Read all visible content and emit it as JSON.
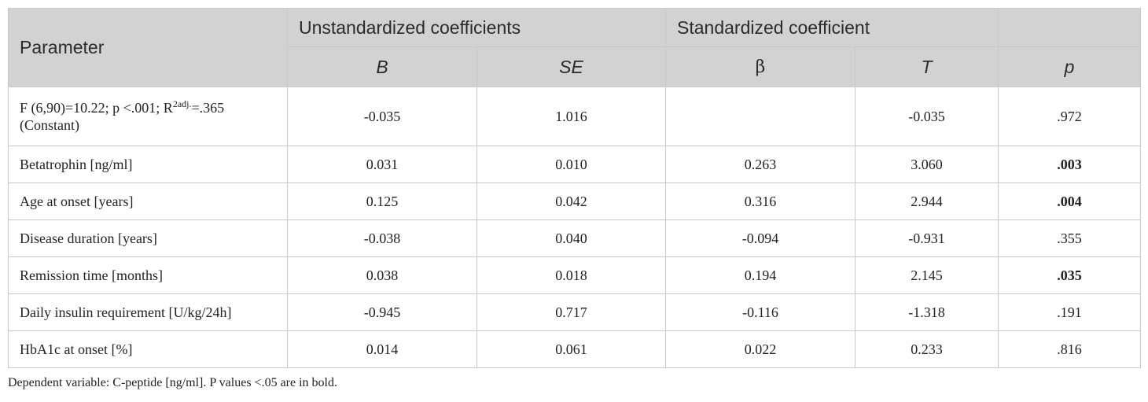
{
  "header": {
    "parameter": "Parameter",
    "group_unstd": "Unstandardized coefficients",
    "group_std": "Standardized coefficient",
    "col_b": "B",
    "col_se": "SE",
    "col_beta": "β",
    "col_t": "T",
    "col_p": "p"
  },
  "model_row": {
    "stat_prefix": "F (6,90)=10.22; p <.001; R",
    "stat_sup": "2adj.",
    "stat_suffix": "=.365",
    "label": "(Constant)",
    "b": "-0.035",
    "se": "1.016",
    "beta": "",
    "t": "-0.035",
    "p": ".972"
  },
  "rows": [
    {
      "label": "Betatrophin [ng/ml]",
      "b": "0.031",
      "se": "0.010",
      "beta": "0.263",
      "t": "3.060",
      "p": ".003",
      "p_bold": true
    },
    {
      "label": "Age at onset [years]",
      "b": "0.125",
      "se": "0.042",
      "beta": "0.316",
      "t": "2.944",
      "p": ".004",
      "p_bold": true
    },
    {
      "label": "Disease duration [years]",
      "b": "-0.038",
      "se": "0.040",
      "beta": "-0.094",
      "t": "-0.931",
      "p": ".355",
      "p_bold": false
    },
    {
      "label": "Remission time [months]",
      "b": "0.038",
      "se": "0.018",
      "beta": "0.194",
      "t": "2.145",
      "p": ".035",
      "p_bold": true
    },
    {
      "label": "Daily insulin requirement [U/kg/24h]",
      "b": "-0.945",
      "se": "0.717",
      "beta": "-0.116",
      "t": "-1.318",
      "p": ".191",
      "p_bold": false
    },
    {
      "label": "HbA1c at onset [%]",
      "b": "0.014",
      "se": "0.061",
      "beta": "0.022",
      "t": "0.233",
      "p": ".816",
      "p_bold": false
    }
  ],
  "footnote": "Dependent variable: C-peptide [ng/ml]. P values <.05 are in bold."
}
